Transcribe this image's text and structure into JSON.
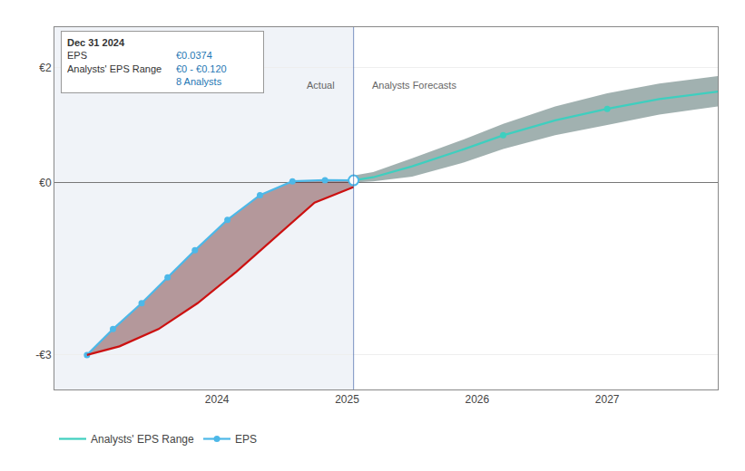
{
  "chart_data": {
    "type": "line",
    "xlim": [
      2022.75,
      2027.85
    ],
    "xticks": [
      2024,
      2025,
      2026,
      2027
    ],
    "ylim": [
      -3.6,
      2.7
    ],
    "yticks": [
      {
        "value": 2,
        "label": "€2"
      },
      {
        "value": 0,
        "label": "€0"
      },
      {
        "value": -3,
        "label": "-€3"
      }
    ],
    "grid": "y",
    "legend": "bottom left",
    "divider": 2025.05,
    "series": [
      {
        "name": "EPS",
        "type": "line",
        "color": "#4db8e8",
        "marker": "circle",
        "x": [
          2023.0,
          2023.2,
          2023.42,
          2023.62,
          2023.83,
          2024.08,
          2024.33,
          2024.58,
          2024.83,
          2025.05
        ],
        "values": [
          -3.0,
          -2.55,
          -2.1,
          -1.65,
          -1.18,
          -0.65,
          -0.22,
          0.02,
          0.04,
          0.037
        ]
      },
      {
        "type": "line",
        "color": "#cc1111",
        "fill_color": "#5a1010",
        "x": [
          2023.0,
          2023.25,
          2023.55,
          2023.85,
          2024.15,
          2024.45,
          2024.75,
          2025.05
        ],
        "values": [
          -3.0,
          -2.85,
          -2.55,
          -2.1,
          -1.55,
          -0.95,
          -0.35,
          -0.08
        ]
      },
      {
        "type": "line",
        "line_style": "none",
        "color": "#3ecfbf",
        "x": [
          2025.05,
          2025.2,
          2025.5,
          2025.9,
          2026.2,
          2026.6,
          2027.0,
          2027.4,
          2027.85
        ],
        "values": [
          0.0,
          0.02,
          0.1,
          0.35,
          0.58,
          0.82,
          1.0,
          1.18,
          1.32
        ]
      },
      {
        "type": "line",
        "line_style": "none",
        "color": "#3ecfbf",
        "fill_color": "#133d3a",
        "x": [
          2025.05,
          2025.2,
          2025.5,
          2025.9,
          2026.2,
          2026.6,
          2027.0,
          2027.4,
          2027.85
        ],
        "values": [
          0.12,
          0.18,
          0.42,
          0.75,
          1.02,
          1.32,
          1.55,
          1.72,
          1.85
        ]
      },
      {
        "name": "Analysts' EPS Range",
        "type": "line",
        "color": "#3ecfbf",
        "x": [
          2025.05,
          2025.2,
          2025.5,
          2025.9,
          2026.2,
          2026.6,
          2027.0,
          2027.4,
          2027.85
        ],
        "values": [
          0.037,
          0.09,
          0.28,
          0.58,
          0.82,
          1.08,
          1.28,
          1.45,
          1.58
        ]
      },
      {
        "type": "scatter",
        "color": "#3ecfbf",
        "marker": "circle",
        "x": [
          2026.2,
          2027.0
        ],
        "values": [
          0.82,
          1.28
        ]
      },
      {
        "type": "scatter",
        "color": "#4db8e8",
        "marker": "ring",
        "x": [
          2025.05
        ],
        "values": [
          0.037
        ]
      }
    ],
    "annotations": [
      {
        "text": "Actual",
        "x": 2024.92,
        "y": 1.82
      },
      {
        "text": "Analysts Forecasts",
        "x": 2025.18,
        "y": 1.82
      }
    ],
    "tooltip": {
      "title": "Dec 31 2024",
      "rows": [
        {
          "label": "EPS",
          "value": "€0.0374"
        },
        {
          "label": "Analysts' EPS Range",
          "value": "€0 - €0.120",
          "note": "8 Analysts"
        }
      ]
    }
  }
}
